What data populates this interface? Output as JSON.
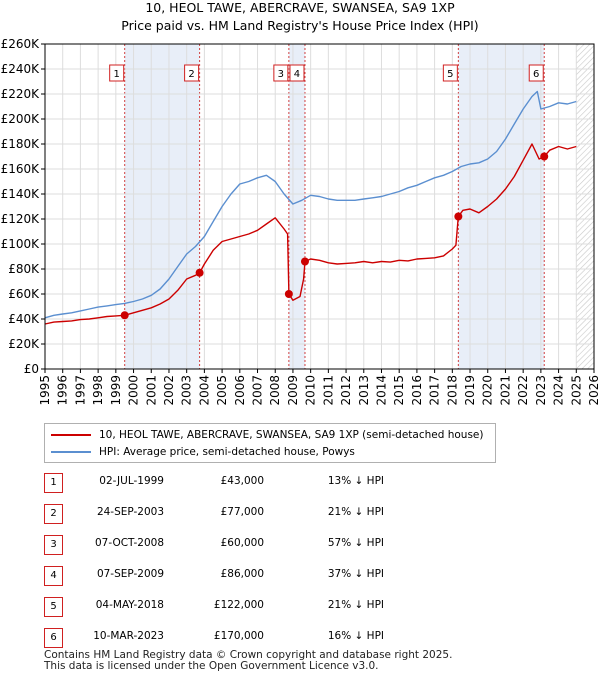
{
  "chart_data": {
    "type": "line",
    "title": "10, HEOL TAWE, ABERCRAVE, SWANSEA, SA9 1XP",
    "subtitle": "Price paid vs. HM Land Registry's House Price Index (HPI)",
    "ylim": [
      0,
      260000
    ],
    "xlim": [
      1995,
      2026
    ],
    "y_ticks": [
      {
        "value": 0,
        "label": "£0"
      },
      {
        "value": 20000,
        "label": "£20K"
      },
      {
        "value": 40000,
        "label": "£40K"
      },
      {
        "value": 60000,
        "label": "£60K"
      },
      {
        "value": 80000,
        "label": "£80K"
      },
      {
        "value": 100000,
        "label": "£100K"
      },
      {
        "value": 120000,
        "label": "£120K"
      },
      {
        "value": 140000,
        "label": "£140K"
      },
      {
        "value": 160000,
        "label": "£160K"
      },
      {
        "value": 180000,
        "label": "£180K"
      },
      {
        "value": 200000,
        "label": "£200K"
      },
      {
        "value": 220000,
        "label": "£220K"
      },
      {
        "value": 240000,
        "label": "£240K"
      },
      {
        "value": 260000,
        "label": "£260K"
      }
    ],
    "x_ticks": [
      "1995",
      "1996",
      "1997",
      "1998",
      "1999",
      "2000",
      "2001",
      "2002",
      "2003",
      "2004",
      "2005",
      "2006",
      "2007",
      "2008",
      "2009",
      "2010",
      "2011",
      "2012",
      "2013",
      "2014",
      "2015",
      "2016",
      "2017",
      "2018",
      "2019",
      "2020",
      "2021",
      "2022",
      "2023",
      "2024",
      "2025",
      "2026"
    ],
    "shaded_spans": [
      [
        1999.5,
        2003.73
      ],
      [
        2008.77,
        2009.68
      ],
      [
        2018.34,
        2023.19
      ]
    ],
    "future_hatch_start": 2025.0,
    "series": [
      {
        "name": "10, HEOL TAWE, ABERCRAVE, SWANSEA, SA9 1XP (semi-detached house)",
        "color": "#cc0000",
        "x": [
          1995.0,
          1995.5,
          1996.0,
          1996.5,
          1997.0,
          1997.5,
          1998.0,
          1998.5,
          1999.0,
          1999.5,
          2000.0,
          2000.5,
          2001.0,
          2001.5,
          2002.0,
          2002.5,
          2003.0,
          2003.5,
          2003.73,
          2004.0,
          2004.5,
          2005.0,
          2005.5,
          2006.0,
          2006.5,
          2007.0,
          2007.5,
          2008.0,
          2008.5,
          2008.7,
          2008.77,
          2009.0,
          2009.4,
          2009.6,
          2009.68,
          2010.0,
          2010.5,
          2011.0,
          2011.5,
          2012.0,
          2012.5,
          2013.0,
          2013.5,
          2014.0,
          2014.5,
          2015.0,
          2015.5,
          2016.0,
          2016.5,
          2017.0,
          2017.5,
          2018.0,
          2018.2,
          2018.34,
          2018.6,
          2019.0,
          2019.5,
          2020.0,
          2020.5,
          2021.0,
          2021.5,
          2022.0,
          2022.5,
          2022.9,
          2023.19,
          2023.5,
          2024.0,
          2024.5,
          2025.0
        ],
        "values": [
          36000,
          37500,
          38000,
          38500,
          39500,
          40000,
          41000,
          42000,
          42500,
          43000,
          45000,
          47000,
          49000,
          52000,
          56000,
          63000,
          72000,
          75000,
          77000,
          84000,
          95000,
          102000,
          104000,
          106000,
          108000,
          111000,
          116000,
          121000,
          112000,
          108000,
          60000,
          55000,
          58000,
          72000,
          86000,
          88000,
          87000,
          85000,
          84000,
          84500,
          85000,
          86000,
          85000,
          86000,
          85500,
          87000,
          86500,
          88000,
          88500,
          89000,
          90500,
          96000,
          99000,
          122000,
          127000,
          128000,
          125000,
          130000,
          136000,
          144000,
          154000,
          167000,
          180000,
          168000,
          170000,
          175000,
          178000,
          176000,
          178000
        ]
      },
      {
        "name": "HPI: Average price, semi-detached house, Powys",
        "color": "#5b8fd0",
        "x": [
          1995.0,
          1995.5,
          1996.0,
          1996.5,
          1997.0,
          1997.5,
          1998.0,
          1998.5,
          1999.0,
          1999.5,
          2000.0,
          2000.5,
          2001.0,
          2001.5,
          2002.0,
          2002.5,
          2003.0,
          2003.5,
          2004.0,
          2004.5,
          2005.0,
          2005.5,
          2006.0,
          2006.5,
          2007.0,
          2007.5,
          2008.0,
          2008.5,
          2009.0,
          2009.5,
          2010.0,
          2010.5,
          2011.0,
          2011.5,
          2012.0,
          2012.5,
          2013.0,
          2013.5,
          2014.0,
          2014.5,
          2015.0,
          2015.5,
          2016.0,
          2016.5,
          2017.0,
          2017.5,
          2018.0,
          2018.5,
          2019.0,
          2019.5,
          2020.0,
          2020.5,
          2021.0,
          2021.5,
          2022.0,
          2022.5,
          2022.8,
          2023.0,
          2023.5,
          2024.0,
          2024.5,
          2025.0
        ],
        "values": [
          41000,
          43000,
          44000,
          45000,
          46500,
          48000,
          49500,
          50500,
          51500,
          52500,
          54000,
          56000,
          59000,
          64000,
          72000,
          82000,
          92000,
          98000,
          106000,
          118000,
          130000,
          140000,
          148000,
          150000,
          153000,
          155000,
          150000,
          140000,
          132000,
          135000,
          139000,
          138000,
          136000,
          135000,
          135000,
          135000,
          136000,
          137000,
          138000,
          140000,
          142000,
          145000,
          147000,
          150000,
          153000,
          155000,
          158000,
          162000,
          164000,
          165000,
          168000,
          174000,
          184000,
          196000,
          208000,
          218000,
          222000,
          208000,
          210000,
          213000,
          212000,
          214000
        ]
      }
    ],
    "sales": [
      {
        "num": "1",
        "year": 1999.5,
        "value": 43000
      },
      {
        "num": "2",
        "year": 2003.73,
        "value": 77000
      },
      {
        "num": "3",
        "year": 2008.77,
        "value": 60000
      },
      {
        "num": "4",
        "year": 2009.68,
        "value": 86000
      },
      {
        "num": "5",
        "year": 2018.34,
        "value": 122000
      },
      {
        "num": "6",
        "year": 2023.19,
        "value": 170000
      }
    ]
  },
  "legend": {
    "property_label": "10, HEOL TAWE, ABERCRAVE, SWANSEA, SA9 1XP (semi-detached house)",
    "hpi_label": "HPI: Average price, semi-detached house, Powys",
    "property_color": "#cc0000",
    "hpi_color": "#5b8fd0"
  },
  "table": {
    "rows": [
      {
        "num": "1",
        "date": "02-JUL-1999",
        "price": "£43,000",
        "pct": "13% ↓ HPI"
      },
      {
        "num": "2",
        "date": "24-SEP-2003",
        "price": "£77,000",
        "pct": "21% ↓ HPI"
      },
      {
        "num": "3",
        "date": "07-OCT-2008",
        "price": "£60,000",
        "pct": "57% ↓ HPI"
      },
      {
        "num": "4",
        "date": "07-SEP-2009",
        "price": "£86,000",
        "pct": "37% ↓ HPI"
      },
      {
        "num": "5",
        "date": "04-MAY-2018",
        "price": "£122,000",
        "pct": "21% ↓ HPI"
      },
      {
        "num": "6",
        "date": "10-MAR-2023",
        "price": "£170,000",
        "pct": "16% ↓ HPI"
      }
    ]
  },
  "footer": {
    "line1": "Contains HM Land Registry data © Crown copyright and database right 2025.",
    "line2": "This data is licensed under the Open Government Licence v3.0."
  }
}
